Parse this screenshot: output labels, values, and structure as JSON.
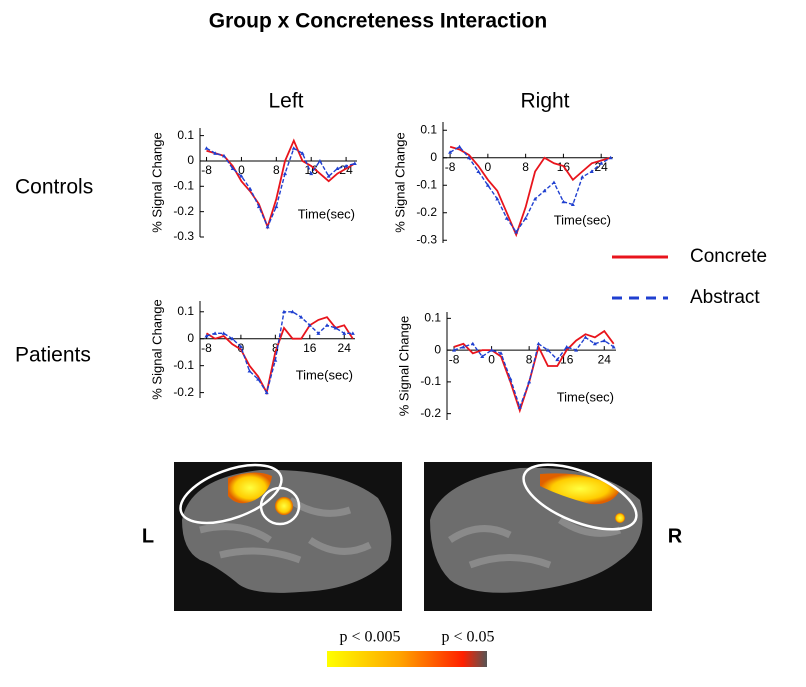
{
  "figure": {
    "title": "Group x Concreteness Interaction",
    "columns": [
      "Left",
      "Right"
    ],
    "rows": [
      "Controls",
      "Patients"
    ],
    "brain_labels": [
      "L",
      "R"
    ],
    "colorbar_labels": [
      "p < 0.005",
      "p < 0.05"
    ]
  },
  "chart_data": [
    {
      "type": "line",
      "x_label": "Time(sec)",
      "y_label": "% Signal Change",
      "x": [
        -8,
        -6,
        -4,
        -2,
        0,
        2,
        4,
        6,
        8,
        10,
        12,
        14,
        16,
        18,
        20,
        22,
        24,
        26
      ],
      "xlim": [
        -9.5,
        26.5
      ],
      "xticks": [
        -8,
        0,
        8,
        16,
        24
      ],
      "ylim": [
        -0.3,
        0.13
      ],
      "yticks": [
        0.1,
        0,
        -0.1,
        -0.2,
        -0.3
      ],
      "series": [
        {
          "name": "Concrete",
          "color": "#e8141c",
          "dash": false,
          "values": [
            0.04,
            0.03,
            0.02,
            -0.02,
            -0.08,
            -0.12,
            -0.17,
            -0.26,
            -0.15,
            0.0,
            0.08,
            0.0,
            -0.02,
            -0.05,
            -0.08,
            -0.05,
            -0.03,
            -0.01
          ]
        },
        {
          "name": "Abstract",
          "color": "#1f3fd0",
          "dash": true,
          "values": [
            0.05,
            0.03,
            0.02,
            -0.03,
            -0.06,
            -0.11,
            -0.18,
            -0.26,
            -0.18,
            -0.05,
            0.05,
            0.03,
            -0.05,
            0.0,
            -0.06,
            -0.03,
            -0.02,
            -0.01
          ]
        }
      ]
    },
    {
      "type": "line",
      "x_label": "Time(sec)",
      "y_label": "% Signal Change",
      "x": [
        -8,
        -6,
        -4,
        -2,
        0,
        2,
        4,
        6,
        8,
        10,
        12,
        14,
        16,
        18,
        20,
        22,
        24,
        26
      ],
      "xlim": [
        -9.5,
        26.5
      ],
      "xticks": [
        -8,
        0,
        8,
        16,
        24
      ],
      "ylim": [
        -0.31,
        0.13
      ],
      "yticks": [
        0.1,
        0,
        -0.1,
        -0.2,
        -0.3
      ],
      "series": [
        {
          "name": "Concrete",
          "color": "#e8141c",
          "dash": false,
          "values": [
            0.04,
            0.03,
            0.01,
            -0.03,
            -0.08,
            -0.12,
            -0.2,
            -0.28,
            -0.18,
            -0.05,
            0.0,
            -0.02,
            -0.03,
            -0.08,
            -0.05,
            -0.02,
            -0.01,
            0.0
          ]
        },
        {
          "name": "Abstract",
          "color": "#1f3fd0",
          "dash": true,
          "values": [
            0.02,
            0.04,
            0.0,
            -0.05,
            -0.1,
            -0.15,
            -0.22,
            -0.27,
            -0.22,
            -0.15,
            -0.12,
            -0.09,
            -0.16,
            -0.17,
            -0.07,
            -0.05,
            -0.02,
            0.0
          ]
        }
      ]
    },
    {
      "type": "line",
      "x_label": "Time(sec)",
      "y_label": "% Signal Change",
      "x": [
        -8,
        -6,
        -4,
        -2,
        0,
        2,
        4,
        6,
        8,
        10,
        12,
        14,
        16,
        18,
        20,
        22,
        24,
        26
      ],
      "xlim": [
        -9.5,
        26.5
      ],
      "xticks": [
        -8,
        0,
        8,
        16,
        24
      ],
      "ylim": [
        -0.22,
        0.14
      ],
      "yticks": [
        0.1,
        0,
        -0.1,
        -0.2
      ],
      "series": [
        {
          "name": "Concrete",
          "color": "#e8141c",
          "dash": false,
          "values": [
            0.02,
            0.0,
            0.01,
            -0.02,
            -0.04,
            -0.1,
            -0.14,
            -0.2,
            -0.05,
            0.04,
            0.0,
            0.0,
            0.05,
            0.07,
            0.08,
            0.04,
            0.05,
            0.0
          ]
        },
        {
          "name": "Abstract",
          "color": "#1f3fd0",
          "dash": true,
          "values": [
            0.01,
            0.02,
            0.02,
            0.0,
            -0.03,
            -0.12,
            -0.15,
            -0.2,
            -0.08,
            0.1,
            0.1,
            0.08,
            0.05,
            0.02,
            0.05,
            0.04,
            0.02,
            0.02
          ]
        }
      ]
    },
    {
      "type": "line",
      "x_label": "Time(sec)",
      "y_label": "% Signal Change",
      "x": [
        -8,
        -6,
        -4,
        -2,
        0,
        2,
        4,
        6,
        8,
        10,
        12,
        14,
        16,
        18,
        20,
        22,
        24,
        26
      ],
      "xlim": [
        -9.5,
        26.5
      ],
      "xticks": [
        -8,
        0,
        8,
        16,
        24
      ],
      "ylim": [
        -0.22,
        0.12
      ],
      "yticks": [
        0.1,
        0,
        -0.1,
        -0.2
      ],
      "series": [
        {
          "name": "Concrete",
          "color": "#e8141c",
          "dash": false,
          "values": [
            0.01,
            0.02,
            -0.01,
            0.0,
            0.0,
            -0.02,
            -0.1,
            -0.19,
            -0.1,
            0.01,
            -0.05,
            -0.05,
            0.0,
            0.03,
            0.05,
            0.04,
            0.06,
            0.02
          ]
        },
        {
          "name": "Abstract",
          "color": "#1f3fd0",
          "dash": true,
          "values": [
            0.0,
            0.01,
            0.02,
            -0.02,
            0.0,
            -0.01,
            -0.09,
            -0.18,
            -0.1,
            0.02,
            0.0,
            -0.03,
            0.01,
            0.0,
            0.04,
            0.02,
            0.03,
            0.01
          ]
        }
      ]
    }
  ]
}
